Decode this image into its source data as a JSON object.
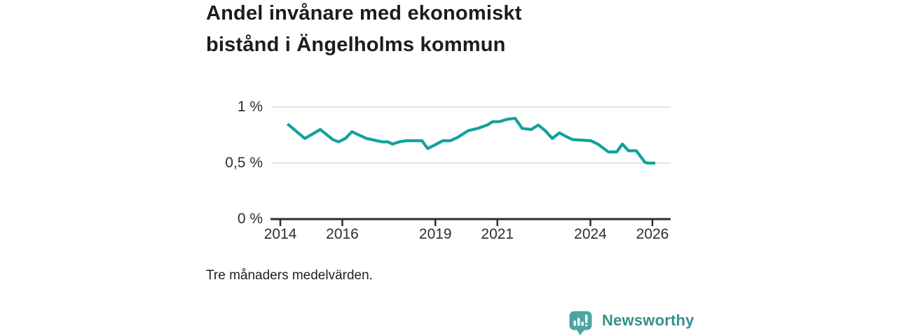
{
  "page": {
    "background": "#ffffff"
  },
  "header": {
    "title_lines": [
      "Andel invånare med ekonomiskt",
      "bistånd i Ängelholms kommun"
    ],
    "title_full": "Andel invånare med ekonomiskt bistånd i Ängelholms kommun"
  },
  "footer": {
    "note": "Tre månaders medelvärden."
  },
  "branding": {
    "name": "Newsworthy",
    "logo_icon": "bar-chart-speech-bubble-icon",
    "bubble_color": "#4BA6A2",
    "text_color": "#35908E"
  },
  "chart_data": {
    "type": "line",
    "title": "Andel invånare med ekonomiskt bistånd i Ängelholms kommun",
    "subtitle": "Tre månaders medelvärden.",
    "unit": "%",
    "line_color": "#12A29A",
    "gridline_color": "#DADADA",
    "axis_color": "#2E2E2E",
    "grid": "horizontal gridlines at 0.5 and 1, dark baseline at 0",
    "legend": "none",
    "y_ticks": [
      {
        "label": "1 %",
        "value": 1
      },
      {
        "label": "0,5 %",
        "value": 0.5
      },
      {
        "label": "0 %",
        "value": 0
      }
    ],
    "x_ticks": [
      {
        "label": "2014",
        "year": 2014
      },
      {
        "label": "2016",
        "year": 2016
      },
      {
        "label": "2019",
        "year": 2019
      },
      {
        "label": "2021",
        "year": 2021
      },
      {
        "label": "2024",
        "year": 2024
      },
      {
        "label": "2026",
        "year": 2026
      }
    ],
    "x_range": [
      2013.7,
      2026.6
    ],
    "y_range": [
      0,
      1.15
    ],
    "series": [
      {
        "name": "Andel invånare med ekonomiskt bistånd",
        "points": [
          [
            2014.23,
            0.85
          ],
          [
            2014.79,
            0.72
          ],
          [
            2015.29,
            0.8
          ],
          [
            2015.69,
            0.71
          ],
          [
            2015.88,
            0.69
          ],
          [
            2016.1,
            0.72
          ],
          [
            2016.31,
            0.78
          ],
          [
            2016.78,
            0.72
          ],
          [
            2017.28,
            0.69
          ],
          [
            2017.46,
            0.69
          ],
          [
            2017.62,
            0.67
          ],
          [
            2017.84,
            0.69
          ],
          [
            2018.07,
            0.7
          ],
          [
            2018.57,
            0.7
          ],
          [
            2018.75,
            0.63
          ],
          [
            2018.97,
            0.66
          ],
          [
            2019.24,
            0.7
          ],
          [
            2019.49,
            0.7
          ],
          [
            2019.72,
            0.73
          ],
          [
            2020.06,
            0.79
          ],
          [
            2020.37,
            0.81
          ],
          [
            2020.67,
            0.84
          ],
          [
            2020.85,
            0.87
          ],
          [
            2021.07,
            0.87
          ],
          [
            2021.3,
            0.89
          ],
          [
            2021.57,
            0.9
          ],
          [
            2021.8,
            0.81
          ],
          [
            2022.09,
            0.8
          ],
          [
            2022.32,
            0.84
          ],
          [
            2022.54,
            0.79
          ],
          [
            2022.77,
            0.72
          ],
          [
            2023.0,
            0.77
          ],
          [
            2023.2,
            0.74
          ],
          [
            2023.42,
            0.71
          ],
          [
            2024.01,
            0.7
          ],
          [
            2024.24,
            0.67
          ],
          [
            2024.58,
            0.6
          ],
          [
            2024.85,
            0.6
          ],
          [
            2025.03,
            0.67
          ],
          [
            2025.23,
            0.61
          ],
          [
            2025.48,
            0.61
          ],
          [
            2025.75,
            0.51
          ],
          [
            2025.84,
            0.5
          ],
          [
            2026.09,
            0.5
          ]
        ]
      }
    ]
  }
}
